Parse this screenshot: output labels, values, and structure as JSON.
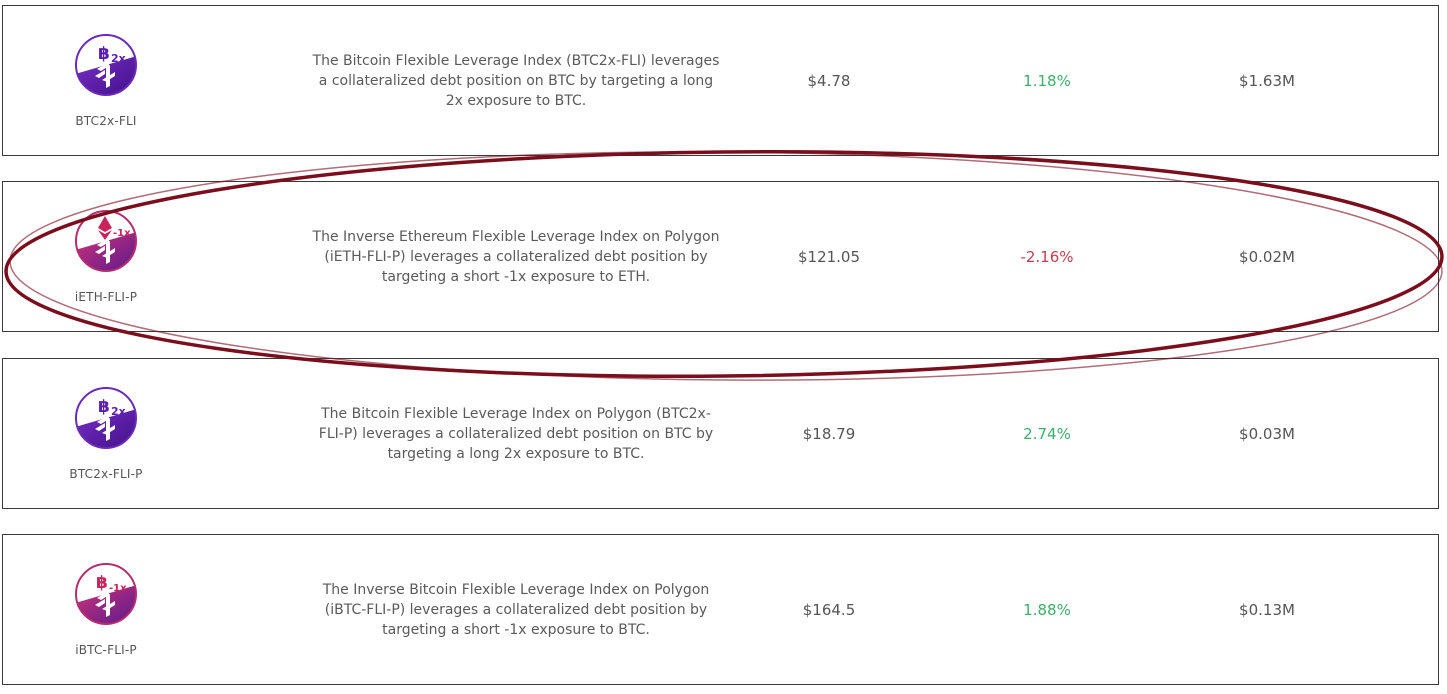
{
  "colors": {
    "positive": "#3fae6a",
    "negative": "#c23f4f",
    "annotation_ring": "#7a0e1c"
  },
  "rows": [
    {
      "symbol": "BTC2x-FLI",
      "icon": "btc-2x-fli-logo-icon",
      "logo_badge": "2x",
      "description": "The Bitcoin Flexible Leverage Index (BTC2x-FLI) leverages a collateralized debt position on BTC by targeting a long 2x exposure to BTC.",
      "price": "$4.78",
      "change": "1.18%",
      "market_cap": "$1.63M"
    },
    {
      "symbol": "iETH-FLI-P",
      "icon": "ieth-fli-p-logo-icon",
      "logo_badge": "-1x",
      "description": "The Inverse Ethereum Flexible Leverage Index on Polygon (iETH-FLI-P) leverages a collateralized debt position by targeting a short -1x exposure to ETH.",
      "price": "$121.05",
      "change": "-2.16%",
      "market_cap": "$0.02M"
    },
    {
      "symbol": "BTC2x-FLI-P",
      "icon": "btc-2x-fli-p-logo-icon",
      "logo_badge": "2x",
      "description": "The Bitcoin Flexible Leverage Index on Polygon (BTC2x-FLI-P) leverages a collateralized debt position on BTC by targeting a long 2x exposure to BTC.",
      "price": "$18.79",
      "change": "2.74%",
      "market_cap": "$0.03M"
    },
    {
      "symbol": "iBTC-FLI-P",
      "icon": "ibtc-fli-p-logo-icon",
      "logo_badge": "-1x",
      "description": "The Inverse Bitcoin Flexible Leverage Index on Polygon (iBTC-FLI-P) leverages a collateralized debt position by targeting a short -1x exposure to BTC.",
      "price": "$164.5",
      "change": "1.88%",
      "market_cap": "$0.13M"
    }
  ]
}
